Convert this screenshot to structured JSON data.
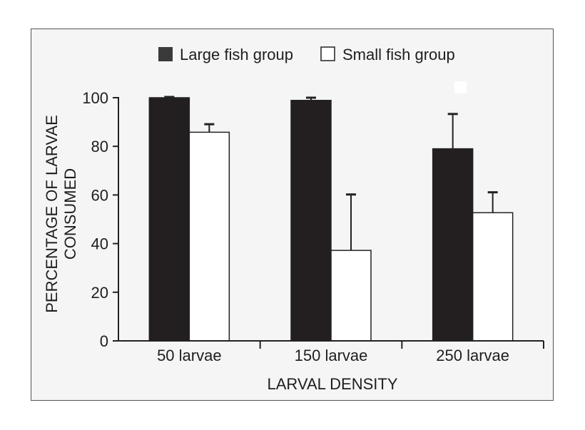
{
  "chart_data": {
    "type": "bar",
    "title": "",
    "xlabel": "LARVAL DENSITY",
    "ylabel": [
      "PERCENTAGE OF LARVAE",
      "CONSUMED"
    ],
    "categories": [
      "50 larvae",
      "150 larvae",
      "250 larvae"
    ],
    "ylim": [
      0,
      100
    ],
    "yticks": [
      0,
      20,
      40,
      60,
      80,
      100
    ],
    "grid": false,
    "legend_position": "top",
    "series": [
      {
        "name": "Large fish group",
        "color": "#231f20",
        "values": [
          100,
          98.9,
          79.0
        ],
        "error": [
          0.3,
          1.1,
          14.3
        ]
      },
      {
        "name": "Small fish group",
        "color": "#ffffff",
        "values": [
          85.8,
          37.2,
          52.7
        ],
        "error": [
          3.3,
          23.0,
          8.4
        ]
      }
    ]
  }
}
